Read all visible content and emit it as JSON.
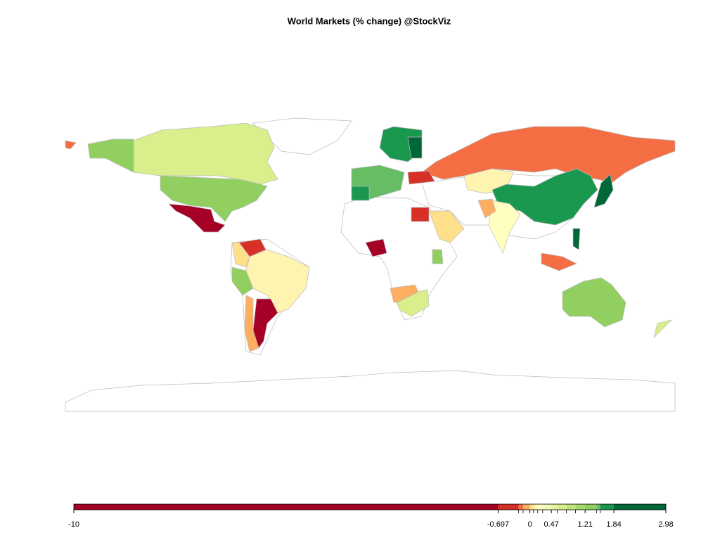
{
  "chart_data": {
    "type": "choropleth",
    "title": "World Markets (% change) @StockViz",
    "colorbar": {
      "lim": [
        -10,
        2.98
      ],
      "breaks": [
        -10,
        -0.697,
        -0.25,
        -0.15,
        0,
        0.08,
        0.17,
        0.28,
        0.47,
        0.6,
        0.8,
        1.0,
        1.21,
        1.46,
        1.54,
        1.84,
        2.98
      ],
      "colors": [
        "#a50026",
        "#d73027",
        "#f46d43",
        "#fdae61",
        "#fee08b",
        "#fff3b0",
        "#ffffbf",
        "#f3f9b6",
        "#e6f5a0",
        "#d9ef8b",
        "#bfe57a",
        "#a6d96a",
        "#91cf60",
        "#66bd63",
        "#1a9850",
        "#006837"
      ],
      "ticks": [
        -10,
        -0.697,
        0,
        0.47,
        1.21,
        1.84,
        2.98
      ]
    }
  }
}
